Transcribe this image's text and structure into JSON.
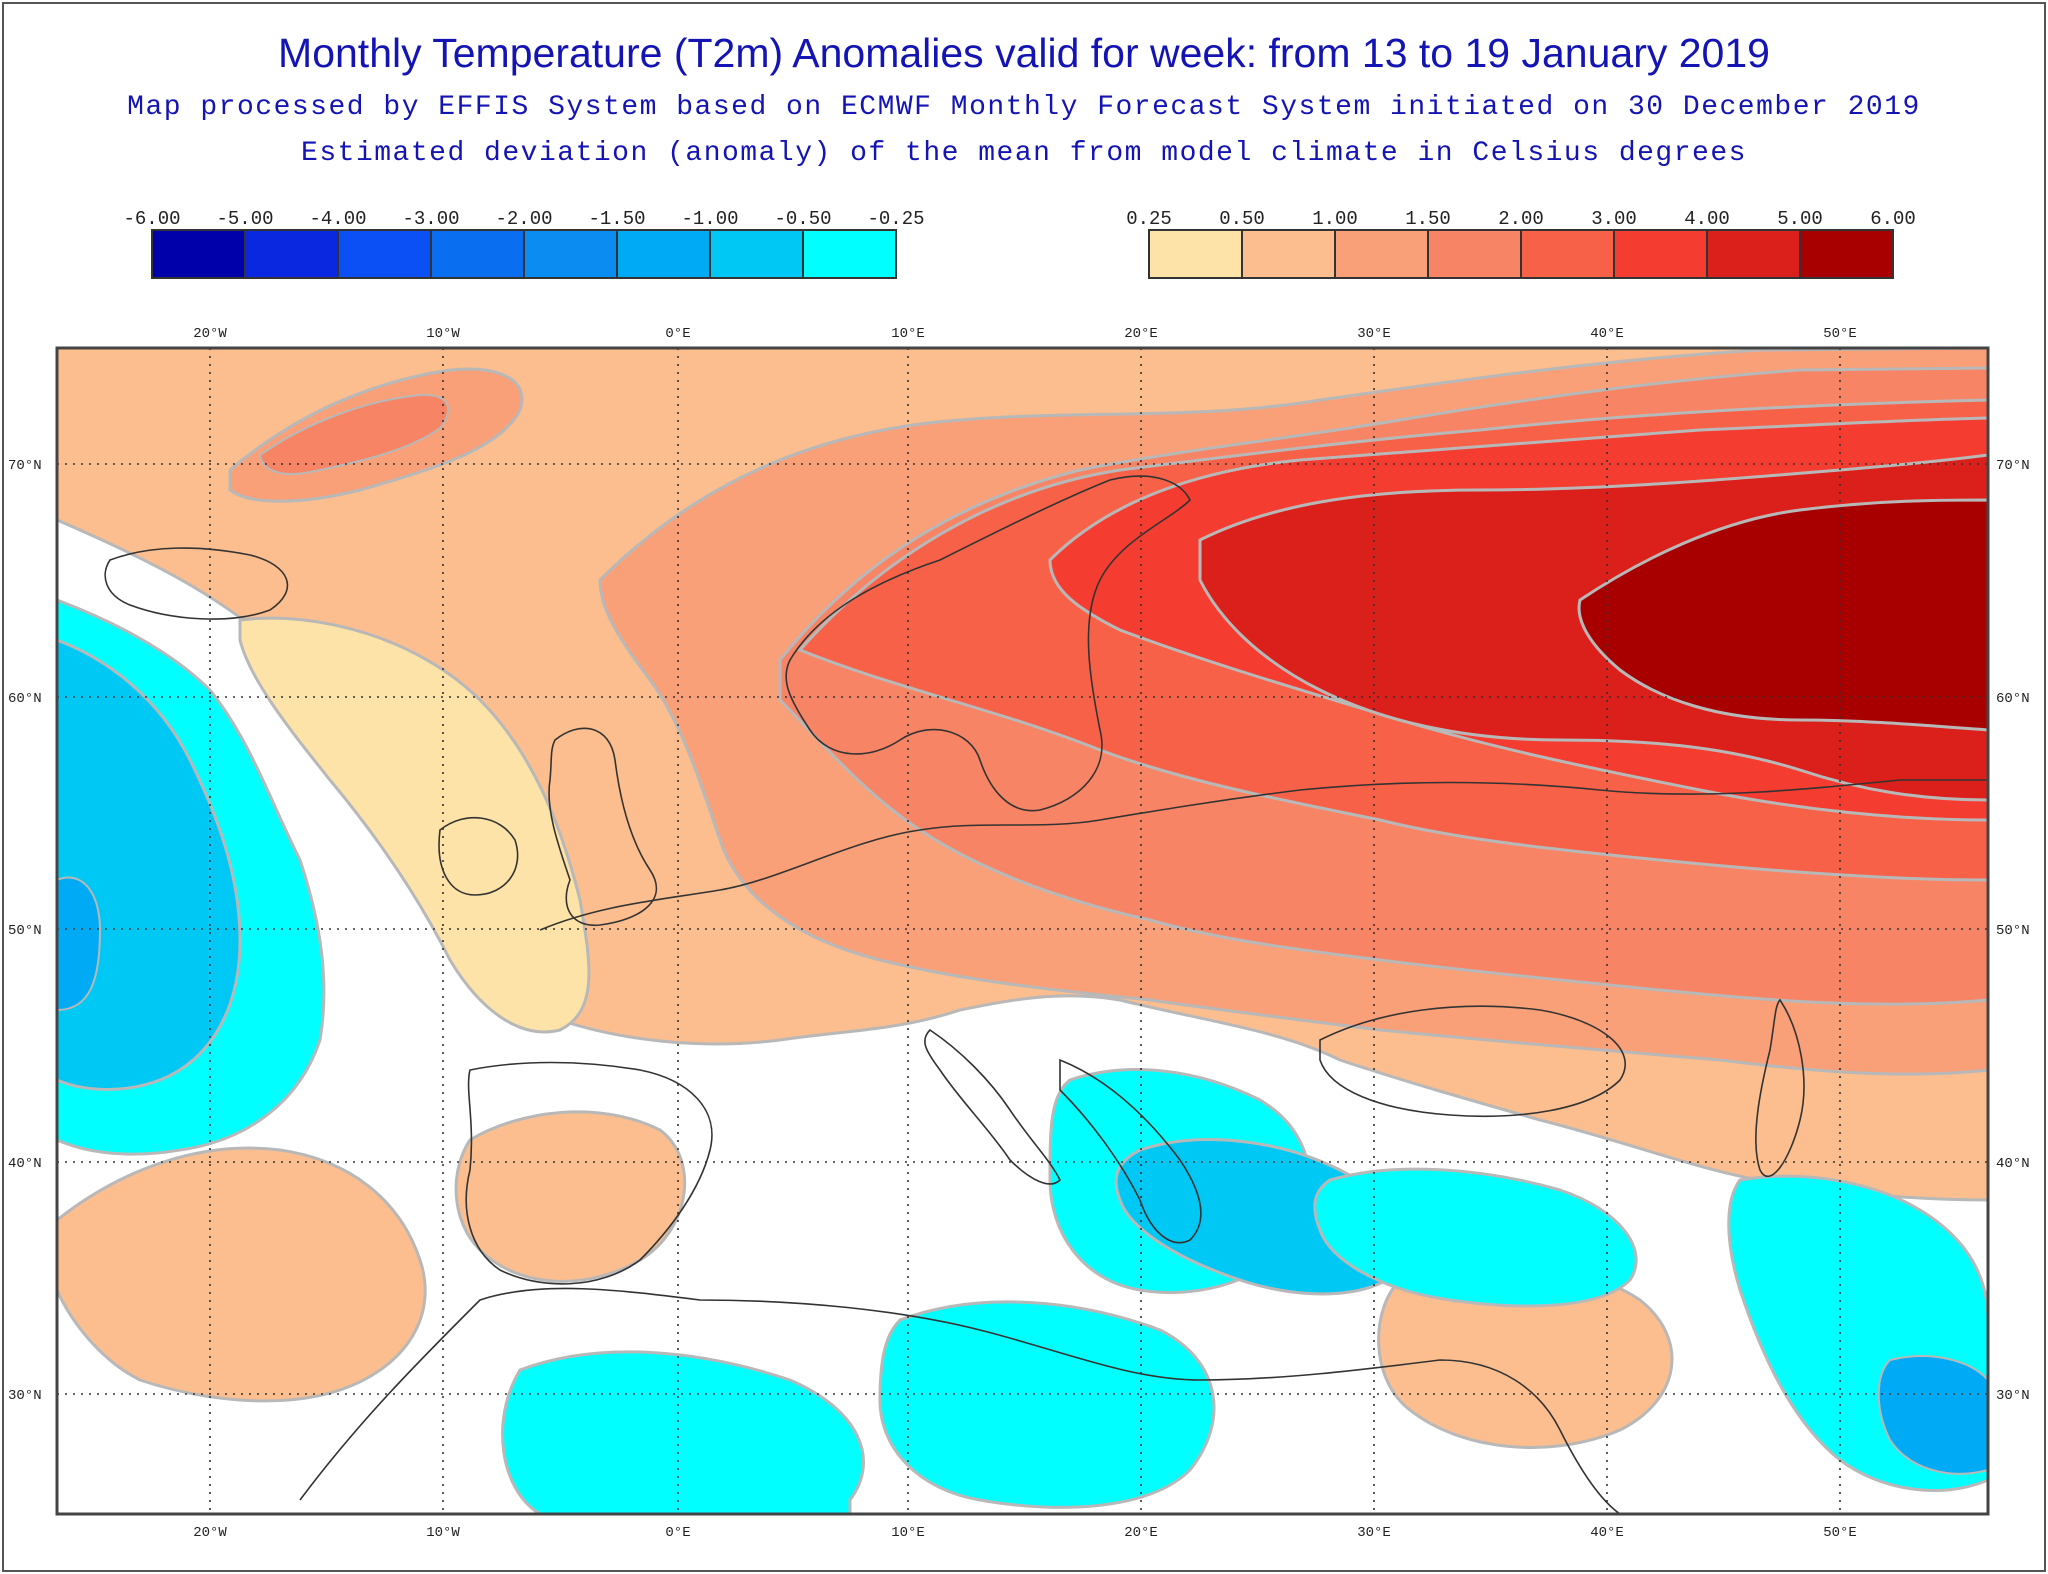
{
  "header": {
    "title": "Monthly Temperature (T2m) Anomalies valid for week: from 13 to 19 January 2019",
    "subtitle_1": "Map processed by EFFIS System based on ECMWF Monthly Forecast System initiated on 30 December 2019",
    "subtitle_2": "Estimated deviation (anomaly) of the mean from model climate in Celsius degrees"
  },
  "legend": {
    "cold": {
      "tick_labels": [
        "-6.00",
        "-5.00",
        "-4.00",
        "-3.00",
        "-2.00",
        "-1.50",
        "-1.00",
        "-0.50",
        "-0.25"
      ],
      "colors": [
        "#0000aa",
        "#0a28e0",
        "#0a50f5",
        "#0a6ef0",
        "#0a8cf0",
        "#00aaf5",
        "#00c8f5",
        "#00ffff"
      ]
    },
    "warm": {
      "tick_labels": [
        "0.25",
        "0.50",
        "1.00",
        "1.50",
        "2.00",
        "3.00",
        "4.00",
        "5.00",
        "6.00"
      ],
      "colors": [
        "#fde3a7",
        "#fcbe8e",
        "#f9a079",
        "#f78465",
        "#f76148",
        "#f53c30",
        "#db1f1a",
        "#a80000"
      ]
    }
  },
  "map": {
    "longitude_labels": [
      "20°W",
      "10°W",
      "0°E",
      "10°E",
      "20°E",
      "30°E",
      "40°E",
      "50°E"
    ],
    "latitude_labels": [
      "70°N",
      "60°N",
      "50°N",
      "40°N",
      "30°N"
    ]
  }
}
